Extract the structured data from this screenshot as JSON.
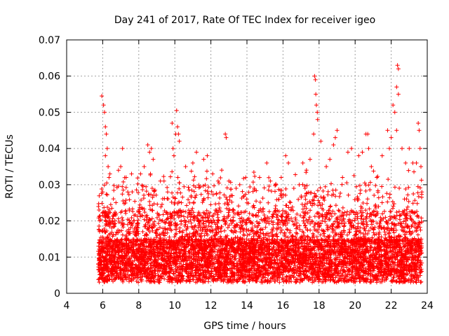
{
  "chart_data": {
    "type": "scatter",
    "title": "Day 241 of 2017, Rate Of TEC Index for receiver igeo",
    "xlabel": "GPS time / hours",
    "ylabel": "ROTI / TECUs",
    "xlim": [
      4,
      24
    ],
    "ylim": [
      0,
      0.07
    ],
    "xticks": [
      "4",
      "6",
      "8",
      "10",
      "12",
      "14",
      "16",
      "18",
      "20",
      "22",
      "24"
    ],
    "yticks": [
      "0",
      "0.01",
      "0.02",
      "0.03",
      "0.04",
      "0.05",
      "0.06",
      "0.07"
    ],
    "grid": true,
    "legend": "none",
    "marker": "+",
    "color": "#ff0000",
    "series": [
      {
        "points": [
          [
            5.95,
            0.0545
          ],
          [
            6.05,
            0.052
          ],
          [
            6.1,
            0.05
          ],
          [
            6.15,
            0.046
          ],
          [
            6.2,
            0.044
          ],
          [
            6.25,
            0.04
          ],
          [
            6.15,
            0.038
          ],
          [
            6.3,
            0.035
          ],
          [
            6.0,
            0.028
          ],
          [
            6.4,
            0.033
          ],
          [
            6.35,
            0.032
          ],
          [
            7.1,
            0.04
          ],
          [
            7.0,
            0.035
          ],
          [
            7.3,
            0.032
          ],
          [
            7.6,
            0.033
          ],
          [
            8.1,
            0.033
          ],
          [
            8.3,
            0.035
          ],
          [
            8.5,
            0.041
          ],
          [
            8.6,
            0.039
          ],
          [
            8.7,
            0.04
          ],
          [
            8.65,
            0.033
          ],
          [
            8.8,
            0.037
          ],
          [
            9.2,
            0.031
          ],
          [
            9.4,
            0.031
          ],
          [
            9.6,
            0.028
          ],
          [
            9.85,
            0.047
          ],
          [
            9.9,
            0.04
          ],
          [
            9.95,
            0.038
          ],
          [
            10.05,
            0.044
          ],
          [
            10.1,
            0.0505
          ],
          [
            10.15,
            0.046
          ],
          [
            10.2,
            0.044
          ],
          [
            10.25,
            0.042
          ],
          [
            10.6,
            0.035
          ],
          [
            11.0,
            0.036
          ],
          [
            11.2,
            0.039
          ],
          [
            11.6,
            0.037
          ],
          [
            11.8,
            0.038
          ],
          [
            12.1,
            0.033
          ],
          [
            12.4,
            0.031
          ],
          [
            12.6,
            0.034
          ],
          [
            12.8,
            0.044
          ],
          [
            12.85,
            0.043
          ],
          [
            13.0,
            0.031
          ],
          [
            13.4,
            0.029
          ],
          [
            13.6,
            0.03
          ],
          [
            14.0,
            0.025
          ],
          [
            14.4,
            0.029
          ],
          [
            14.7,
            0.032
          ],
          [
            15.1,
            0.036
          ],
          [
            15.3,
            0.031
          ],
          [
            15.6,
            0.03
          ],
          [
            15.9,
            0.032
          ],
          [
            16.15,
            0.038
          ],
          [
            16.3,
            0.036
          ],
          [
            16.6,
            0.029
          ],
          [
            16.9,
            0.03
          ],
          [
            17.1,
            0.036
          ],
          [
            17.3,
            0.034
          ],
          [
            17.5,
            0.037
          ],
          [
            17.75,
            0.06
          ],
          [
            17.8,
            0.059
          ],
          [
            17.82,
            0.055
          ],
          [
            17.85,
            0.052
          ],
          [
            17.9,
            0.05
          ],
          [
            17.92,
            0.048
          ],
          [
            17.7,
            0.044
          ],
          [
            18.1,
            0.042
          ],
          [
            18.4,
            0.035
          ],
          [
            18.6,
            0.037
          ],
          [
            18.8,
            0.041
          ],
          [
            18.9,
            0.043
          ],
          [
            19.0,
            0.045
          ],
          [
            19.3,
            0.032
          ],
          [
            19.6,
            0.039
          ],
          [
            19.8,
            0.04
          ],
          [
            20.2,
            0.038
          ],
          [
            20.4,
            0.039
          ],
          [
            20.6,
            0.044
          ],
          [
            20.7,
            0.044
          ],
          [
            20.75,
            0.04
          ],
          [
            20.9,
            0.035
          ],
          [
            21.2,
            0.032
          ],
          [
            21.5,
            0.038
          ],
          [
            21.8,
            0.045
          ],
          [
            21.9,
            0.04
          ],
          [
            22.0,
            0.043
          ],
          [
            22.1,
            0.052
          ],
          [
            22.2,
            0.05
          ],
          [
            22.3,
            0.045
          ],
          [
            22.35,
            0.063
          ],
          [
            22.4,
            0.062
          ],
          [
            22.3,
            0.057
          ],
          [
            22.4,
            0.055
          ],
          [
            22.6,
            0.04
          ],
          [
            22.8,
            0.036
          ],
          [
            23.0,
            0.04
          ],
          [
            23.2,
            0.036
          ],
          [
            23.4,
            0.036
          ],
          [
            23.5,
            0.047
          ],
          [
            23.55,
            0.045
          ],
          [
            23.6,
            0.04
          ],
          [
            23.65,
            0.035
          ],
          [
            23.7,
            0.028
          ]
        ],
        "dense_band": {
          "x_range": [
            5.75,
            23.7
          ],
          "y_range_typical": [
            0.003,
            0.025
          ],
          "note_values": []
        }
      }
    ]
  }
}
